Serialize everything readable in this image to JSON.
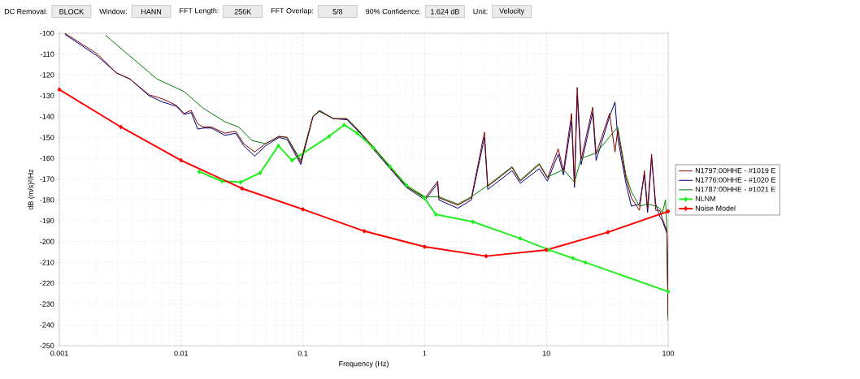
{
  "chart_data": {
    "type": "line",
    "xlabel": "Frequency (Hz)",
    "ylabel": "dB (m/s)²/Hz",
    "log": "x",
    "grid": true,
    "legend": "right",
    "line_style": "solid",
    "xlim": [
      0.001,
      100
    ],
    "xticks": [
      0.001,
      0.01,
      0.1,
      1,
      10,
      100
    ],
    "ylim": [
      -250,
      -100
    ],
    "yticks": [
      -250,
      -240,
      -230,
      -220,
      -210,
      -200,
      -190,
      -180,
      -170,
      -160,
      -150,
      -140,
      -130,
      -120,
      -110,
      -100
    ],
    "annotations": [
      "DC Removal:",
      "BLOCK",
      "Window:",
      "HANN",
      "FFT Length:",
      "256K",
      "FFT Overlap:",
      "5/8",
      "90% Confidence:",
      "1.624 dB",
      "Unit:",
      "Velocity"
    ],
    "series": [
      {
        "name": "N1797:00HHE - #1019 E",
        "color": "#800000",
        "marker": "none",
        "x": [
          0.00111,
          0.00206,
          0.00294,
          0.00381,
          0.00545,
          0.00705,
          0.0091,
          0.0106,
          0.0121,
          0.0137,
          0.0152,
          0.0177,
          0.0229,
          0.0281,
          0.0327,
          0.0402,
          0.0494,
          0.0637,
          0.0743,
          0.0962,
          0.121,
          0.137,
          0.178,
          0.23,
          0.296,
          0.383,
          0.521,
          0.708,
          1.01,
          1.28,
          1.31,
          1.87,
          2.42,
          3.1,
          3.3,
          5.22,
          6.1,
          8.73,
          10.2,
          12.5,
          13.8,
          16.1,
          17.0,
          17.9,
          19.3,
          24.0,
          25.6,
          33.0,
          36.6,
          38.5,
          45.0,
          49.8,
          58.1,
          63.8,
          67.8,
          73.1,
          79.1,
          85.3,
          89.7,
          97.7,
          100
        ],
        "values": [
          -100,
          -110,
          -119,
          -122,
          -129.5,
          -131.5,
          -134.5,
          -138.5,
          -137,
          -143.5,
          -145,
          -145,
          -148,
          -147,
          -153,
          -157,
          -153,
          -149.5,
          -150,
          -162,
          -140,
          -137,
          -141,
          -141,
          -147.5,
          -155,
          -164.5,
          -173.5,
          -179,
          -171,
          -179,
          -182.5,
          -179,
          -147.5,
          -173.5,
          -164.5,
          -171,
          -163,
          -169.5,
          -155.5,
          -166,
          -138.5,
          -172,
          -126,
          -160.5,
          -135.5,
          -158,
          -138.5,
          -157,
          -146.5,
          -169.5,
          -179,
          -185,
          -166,
          -184,
          -158,
          -185,
          -185,
          -189,
          -195,
          -238
        ]
      },
      {
        "name": "N1776:00HHE - #1020 E",
        "color": "#000080",
        "marker": "none",
        "x": [
          0.00111,
          0.00206,
          0.00294,
          0.00381,
          0.00545,
          0.00705,
          0.0091,
          0.0106,
          0.0121,
          0.0137,
          0.0152,
          0.0177,
          0.0229,
          0.0281,
          0.0327,
          0.0402,
          0.0494,
          0.0637,
          0.0743,
          0.0962,
          0.121,
          0.137,
          0.178,
          0.23,
          0.296,
          0.383,
          0.521,
          0.708,
          1.01,
          1.28,
          1.31,
          1.87,
          2.42,
          3.1,
          3.3,
          5.22,
          6.1,
          8.73,
          10.2,
          12.5,
          13.8,
          16.1,
          17.0,
          17.9,
          19.3,
          24.0,
          25.6,
          33.0,
          36.6,
          38.5,
          45.0,
          49.8,
          58.1,
          63.8,
          67.8,
          73.1,
          79.1,
          85.3,
          89.7,
          97.7,
          100
        ],
        "values": [
          -100.5,
          -111,
          -119,
          -122,
          -130,
          -133,
          -135,
          -139,
          -138,
          -146,
          -145.5,
          -145.5,
          -149,
          -148,
          -154,
          -159,
          -154,
          -150,
          -151,
          -163,
          -140,
          -137.5,
          -141,
          -141.5,
          -148,
          -156,
          -165,
          -174,
          -180,
          -172,
          -180,
          -184,
          -180,
          -150,
          -175,
          -166,
          -172,
          -165,
          -171,
          -158,
          -168,
          -142,
          -174,
          -130,
          -163,
          -138,
          -161,
          -140,
          -133,
          -150,
          -172,
          -183,
          -182,
          -168,
          -186,
          -160,
          -182,
          -188,
          -190,
          -196,
          -236
        ]
      },
      {
        "name": "N1787:00HHE - #1021 E",
        "color": "#008000",
        "marker": "none",
        "x": [
          0.0024,
          0.00381,
          0.00635,
          0.0106,
          0.0152,
          0.0229,
          0.0296,
          0.0382,
          0.0494,
          0.0637,
          0.0743,
          0.0962,
          0.121,
          0.137,
          0.178,
          0.23,
          0.296,
          0.383,
          0.521,
          0.708,
          1.01,
          1.31,
          1.87,
          2.42,
          3.3,
          5.22,
          6.1,
          8.73,
          10.2,
          13.8,
          17.0,
          19.3,
          25.6,
          38.5,
          45.0,
          49.8,
          58.1,
          67.8,
          79.1,
          85.3,
          89.7,
          95.0,
          97.7,
          100
        ],
        "values": [
          -101,
          -111,
          -122,
          -128,
          -136,
          -142.5,
          -145,
          -151.5,
          -153,
          -149.5,
          -150,
          -161,
          -140,
          -137.5,
          -141,
          -141,
          -147.5,
          -155,
          -164,
          -173,
          -178.5,
          -178.5,
          -182,
          -178.5,
          -173,
          -164,
          -170.5,
          -162.5,
          -169,
          -165.5,
          -171.5,
          -160,
          -157.5,
          -145,
          -168,
          -176,
          -183,
          -182,
          -183,
          -184,
          -186,
          -180,
          -194,
          -236
        ]
      },
      {
        "name": "NLNM",
        "color": "#22ee22",
        "marker": "diamond",
        "x": [
          0.0141,
          0.0217,
          0.0308,
          0.0446,
          0.063,
          0.0815,
          0.164,
          0.218,
          0.28,
          0.38,
          0.52,
          0.71,
          0.99,
          1.24,
          2.49,
          6.1,
          10.5,
          16.5,
          20.9,
          100
        ],
        "values": [
          -166.5,
          -171,
          -171.5,
          -167,
          -154,
          -161,
          -149.5,
          -144,
          -148,
          -155,
          -164,
          -173,
          -179,
          -187,
          -190.5,
          -198.5,
          -204,
          -208,
          -210,
          -224
        ]
      },
      {
        "name": "Noise Model",
        "color": "#ff0000",
        "marker": "diamond",
        "x": [
          0.001,
          0.0032,
          0.01,
          0.0316,
          0.1,
          0.32,
          1,
          3.2,
          10,
          32,
          100
        ],
        "values": [
          -127,
          -145,
          -161,
          -174.5,
          -184.5,
          -195,
          -202.5,
          -207,
          -204,
          -195.5,
          -185.5
        ]
      }
    ]
  }
}
